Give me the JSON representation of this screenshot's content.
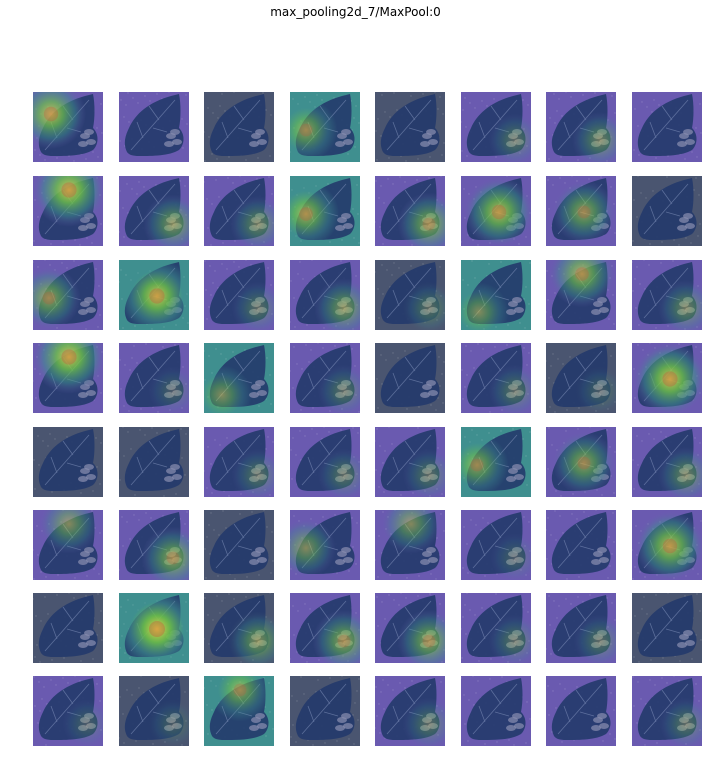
{
  "figure": {
    "title": "max_pooling2d_7/MaxPool:0",
    "rows": 8,
    "cols": 8
  },
  "palette": {
    "dark_blue": "#3b4a8c",
    "navy": "#243a6b",
    "slate": "#4a5570",
    "teal": "#3f8f8f",
    "green": "#6cc04a",
    "yellow": "#e0d24a",
    "red": "#c8503a",
    "violet": "#6a5ab0"
  },
  "maps": [
    [
      {
        "hot": "tl",
        "tone": "violet",
        "level": 0.8
      },
      {
        "hot": "none",
        "tone": "violet",
        "level": 0.1
      },
      {
        "hot": "none",
        "tone": "slate",
        "level": 0.0
      },
      {
        "hot": "left",
        "tone": "teal",
        "level": 0.6
      },
      {
        "hot": "none",
        "tone": "slate",
        "level": 0.0
      },
      {
        "hot": "br",
        "tone": "violet",
        "level": 0.3
      },
      {
        "hot": "br",
        "tone": "violet",
        "level": 0.4
      },
      {
        "hot": "none",
        "tone": "violet",
        "level": 0.2
      }
    ],
    [
      {
        "hot": "top",
        "tone": "violet",
        "level": 0.9
      },
      {
        "hot": "br",
        "tone": "violet",
        "level": 0.5
      },
      {
        "hot": "br",
        "tone": "violet",
        "level": 0.4
      },
      {
        "hot": "left",
        "tone": "teal",
        "level": 0.7
      },
      {
        "hot": "br",
        "tone": "violet",
        "level": 0.6
      },
      {
        "hot": "center",
        "tone": "violet",
        "level": 0.8
      },
      {
        "hot": "center",
        "tone": "violet",
        "level": 0.6
      },
      {
        "hot": "none",
        "tone": "slate",
        "level": 0.0
      }
    ],
    [
      {
        "hot": "left",
        "tone": "violet",
        "level": 0.6
      },
      {
        "hot": "center",
        "tone": "teal",
        "level": 0.9
      },
      {
        "hot": "br",
        "tone": "violet",
        "level": 0.3
      },
      {
        "hot": "br",
        "tone": "violet",
        "level": 0.5
      },
      {
        "hot": "br",
        "tone": "slate",
        "level": 0.3
      },
      {
        "hot": "bl",
        "tone": "teal",
        "level": 0.5
      },
      {
        "hot": "top",
        "tone": "violet",
        "level": 0.7
      },
      {
        "hot": "br",
        "tone": "violet",
        "level": 0.4
      }
    ],
    [
      {
        "hot": "top",
        "tone": "violet",
        "level": 0.9
      },
      {
        "hot": "br",
        "tone": "violet",
        "level": 0.2
      },
      {
        "hot": "bl",
        "tone": "teal",
        "level": 0.5
      },
      {
        "hot": "br",
        "tone": "violet",
        "level": 0.3
      },
      {
        "hot": "none",
        "tone": "slate",
        "level": 0.1
      },
      {
        "hot": "br",
        "tone": "violet",
        "level": 0.3
      },
      {
        "hot": "br",
        "tone": "slate",
        "level": 0.2
      },
      {
        "hot": "center",
        "tone": "violet",
        "level": 0.9
      }
    ],
    [
      {
        "hot": "none",
        "tone": "slate",
        "level": 0.0
      },
      {
        "hot": "none",
        "tone": "slate",
        "level": 0.0
      },
      {
        "hot": "br",
        "tone": "violet",
        "level": 0.3
      },
      {
        "hot": "br",
        "tone": "violet",
        "level": 0.3
      },
      {
        "hot": "br",
        "tone": "violet",
        "level": 0.3
      },
      {
        "hot": "left",
        "tone": "teal",
        "level": 0.6
      },
      {
        "hot": "center",
        "tone": "violet",
        "level": 0.6
      },
      {
        "hot": "br",
        "tone": "violet",
        "level": 0.4
      }
    ],
    [
      {
        "hot": "top",
        "tone": "violet",
        "level": 0.5
      },
      {
        "hot": "br",
        "tone": "violet",
        "level": 0.6
      },
      {
        "hot": "none",
        "tone": "slate",
        "level": 0.1
      },
      {
        "hot": "left",
        "tone": "violet",
        "level": 0.5
      },
      {
        "hot": "top",
        "tone": "violet",
        "level": 0.5
      },
      {
        "hot": "br",
        "tone": "violet",
        "level": 0.2
      },
      {
        "hot": "none",
        "tone": "violet",
        "level": 0.2
      },
      {
        "hot": "center",
        "tone": "violet",
        "level": 0.8
      }
    ],
    [
      {
        "hot": "none",
        "tone": "slate",
        "level": 0.0
      },
      {
        "hot": "center",
        "tone": "teal",
        "level": 1.0
      },
      {
        "hot": "br",
        "tone": "slate",
        "level": 0.5
      },
      {
        "hot": "br",
        "tone": "violet",
        "level": 0.6
      },
      {
        "hot": "br",
        "tone": "violet",
        "level": 0.6
      },
      {
        "hot": "br",
        "tone": "violet",
        "level": 0.3
      },
      {
        "hot": "br",
        "tone": "violet",
        "level": 0.3
      },
      {
        "hot": "none",
        "tone": "slate",
        "level": 0.1
      }
    ],
    [
      {
        "hot": "br",
        "tone": "violet",
        "level": 0.2
      },
      {
        "hot": "br",
        "tone": "slate",
        "level": 0.2
      },
      {
        "hot": "top",
        "tone": "teal",
        "level": 0.6
      },
      {
        "hot": "none",
        "tone": "slate",
        "level": 0.1
      },
      {
        "hot": "br",
        "tone": "violet",
        "level": 0.3
      },
      {
        "hot": "none",
        "tone": "violet",
        "level": 0.2
      },
      {
        "hot": "none",
        "tone": "violet",
        "level": 0.2
      },
      {
        "hot": "br",
        "tone": "violet",
        "level": 0.3
      }
    ]
  ]
}
